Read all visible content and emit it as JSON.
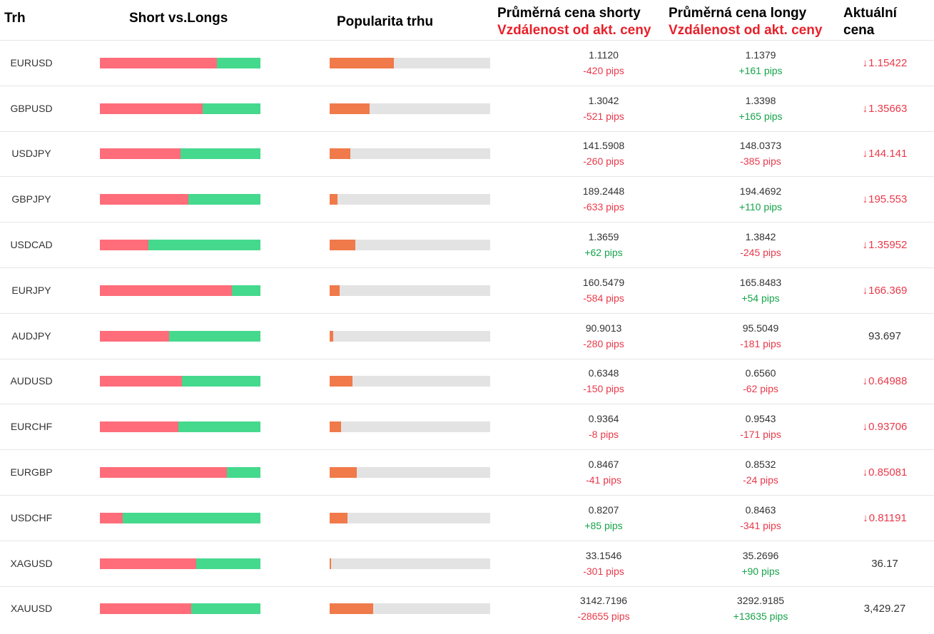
{
  "header": {
    "trh": "Trh",
    "short_vs_longs": "Short vs.Longs",
    "popularita": "Popularita trhu",
    "avg_short": "Průměrná cena shorty",
    "avg_short_sub": "Vzdálenost od akt. ceny",
    "avg_long": "Průměrná cena longy",
    "avg_long_sub": "Vzdálenost od akt. ceny",
    "current_1": "Aktuální",
    "current_2": "cena"
  },
  "colors": {
    "short_bar": "#ff6d7a",
    "long_bar": "#45d98e",
    "popularity_fill": "#f07a4a",
    "popularity_track": "#e3e3e3",
    "negative": "#e8394a",
    "positive": "#16a34a"
  },
  "rows": [
    {
      "pair": "EURUSD",
      "short_pct": 73,
      "popularity_pct": 40,
      "short_price": "1.1120",
      "short_dist": "-420 pips",
      "short_dir": "neg",
      "long_price": "1.1379",
      "long_dist": "+161 pips",
      "long_dir": "pos",
      "current": "1.15422",
      "current_trend": "down",
      "current_icon": "arrow-down-icon"
    },
    {
      "pair": "GBPUSD",
      "short_pct": 64,
      "popularity_pct": 25,
      "short_price": "1.3042",
      "short_dist": "-521 pips",
      "short_dir": "neg",
      "long_price": "1.3398",
      "long_dist": "+165 pips",
      "long_dir": "pos",
      "current": "1.35663",
      "current_trend": "down",
      "current_icon": "arrow-down-icon"
    },
    {
      "pair": "USDJPY",
      "short_pct": 50,
      "popularity_pct": 13,
      "short_price": "141.5908",
      "short_dist": "-260 pips",
      "short_dir": "neg",
      "long_price": "148.0373",
      "long_dist": "-385 pips",
      "long_dir": "neg",
      "current": "144.141",
      "current_trend": "down",
      "current_icon": "arrow-down-icon"
    },
    {
      "pair": "GBPJPY",
      "short_pct": 55,
      "popularity_pct": 5,
      "short_price": "189.2448",
      "short_dist": "-633 pips",
      "short_dir": "neg",
      "long_price": "194.4692",
      "long_dist": "+110 pips",
      "long_dir": "pos",
      "current": "195.553",
      "current_trend": "down",
      "current_icon": "arrow-down-icon"
    },
    {
      "pair": "USDCAD",
      "short_pct": 30,
      "popularity_pct": 16,
      "short_price": "1.3659",
      "short_dist": "+62 pips",
      "short_dir": "pos",
      "long_price": "1.3842",
      "long_dist": "-245 pips",
      "long_dir": "neg",
      "current": "1.35952",
      "current_trend": "down",
      "current_icon": "arrow-down-icon"
    },
    {
      "pair": "EURJPY",
      "short_pct": 82,
      "popularity_pct": 6,
      "short_price": "160.5479",
      "short_dist": "-584 pips",
      "short_dir": "neg",
      "long_price": "165.8483",
      "long_dist": "+54 pips",
      "long_dir": "pos",
      "current": "166.369",
      "current_trend": "down",
      "current_icon": "arrow-down-icon"
    },
    {
      "pair": "AUDJPY",
      "short_pct": 43,
      "popularity_pct": 2,
      "short_price": "90.9013",
      "short_dist": "-280 pips",
      "short_dir": "neg",
      "long_price": "95.5049",
      "long_dist": "-181 pips",
      "long_dir": "neg",
      "current": "93.697",
      "current_trend": "flat",
      "current_icon": ""
    },
    {
      "pair": "AUDUSD",
      "short_pct": 51,
      "popularity_pct": 14,
      "short_price": "0.6348",
      "short_dist": "-150 pips",
      "short_dir": "neg",
      "long_price": "0.6560",
      "long_dist": "-62 pips",
      "long_dir": "neg",
      "current": "0.64988",
      "current_trend": "down",
      "current_icon": "arrow-down-icon"
    },
    {
      "pair": "EURCHF",
      "short_pct": 49,
      "popularity_pct": 7,
      "short_price": "0.9364",
      "short_dist": "-8 pips",
      "short_dir": "neg",
      "long_price": "0.9543",
      "long_dist": "-171 pips",
      "long_dir": "neg",
      "current": "0.93706",
      "current_trend": "down",
      "current_icon": "arrow-down-icon"
    },
    {
      "pair": "EURGBP",
      "short_pct": 79,
      "popularity_pct": 17,
      "short_price": "0.8467",
      "short_dist": "-41 pips",
      "short_dir": "neg",
      "long_price": "0.8532",
      "long_dist": "-24 pips",
      "long_dir": "neg",
      "current": "0.85081",
      "current_trend": "down",
      "current_icon": "arrow-down-icon"
    },
    {
      "pair": "USDCHF",
      "short_pct": 14,
      "popularity_pct": 11,
      "short_price": "0.8207",
      "short_dist": "+85 pips",
      "short_dir": "pos",
      "long_price": "0.8463",
      "long_dist": "-341 pips",
      "long_dir": "neg",
      "current": "0.81191",
      "current_trend": "down",
      "current_icon": "arrow-down-icon"
    },
    {
      "pair": "XAGUSD",
      "short_pct": 60,
      "popularity_pct": 1,
      "short_price": "33.1546",
      "short_dist": "-301 pips",
      "short_dir": "neg",
      "long_price": "35.2696",
      "long_dist": "+90 pips",
      "long_dir": "pos",
      "current": "36.17",
      "current_trend": "flat",
      "current_icon": ""
    },
    {
      "pair": "XAUUSD",
      "short_pct": 57,
      "popularity_pct": 27,
      "short_price": "3142.7196",
      "short_dist": "-28655 pips",
      "short_dir": "neg",
      "long_price": "3292.9185",
      "long_dist": "+13635 pips",
      "long_dir": "pos",
      "current": "3,429.27",
      "current_trend": "flat",
      "current_icon": ""
    }
  ]
}
